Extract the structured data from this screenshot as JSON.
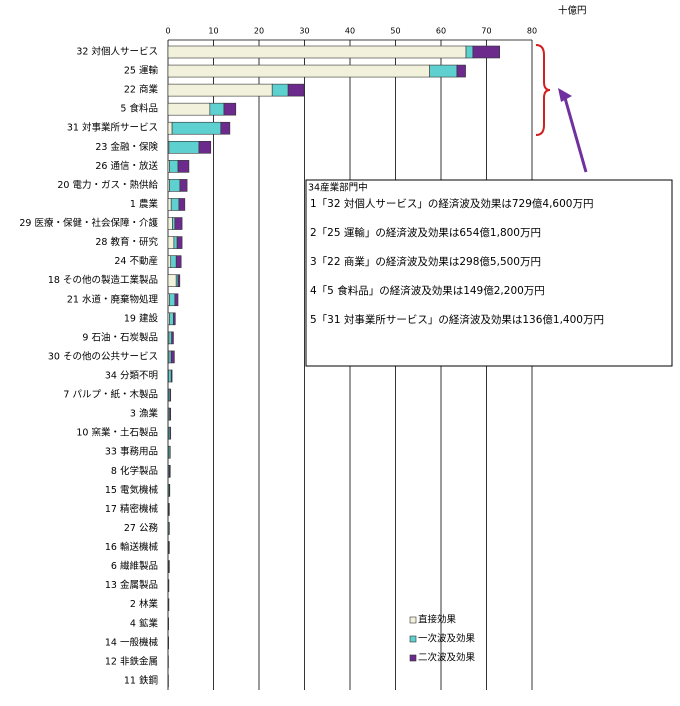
{
  "chart_data": {
    "type": "stacked-barh",
    "unit_label": "十億円",
    "categories": [
      "32 対個人サービス",
      "25 運輸",
      "22 商業",
      "5 食料品",
      "31 対事業所サービス",
      "23 金融・保険",
      "26 通信・放送",
      "20 電力・ガス・熱供給",
      "1 農業",
      "29 医療・保健・社会保障・介護",
      "28 教育・研究",
      "24 不動産",
      "18 その他の製造工業製品",
      "21 水道・廃棄物処理",
      "19 建設",
      "9 石油・石炭製品",
      "30 その他の公共サービス",
      "34 分類不明",
      "7 パルプ・紙・木製品",
      "3 漁業",
      "10 窯業・土石製品",
      "33 事務用品",
      "8 化学製品",
      "15 電気機械",
      "17 精密機械",
      "27 公務",
      "16 輸送機械",
      "6 繊維製品",
      "13 金属製品",
      "2 林業",
      "4 鉱業",
      "14 一般機械",
      "12 非鉄金属",
      "11 鉄鋼"
    ],
    "series": [
      {
        "name": "直接効果",
        "color": "#f2f2dc",
        "values": [
          65.5,
          57.5,
          22.9,
          9.2,
          0.9,
          0.2,
          0.3,
          0.3,
          0.7,
          1.0,
          1.3,
          0.6,
          1.8,
          0.3,
          0.3,
          0.2,
          0.2,
          0.1,
          0.1,
          0.2,
          0.1,
          0.1,
          0.1,
          0.1,
          0.1,
          0,
          0.1,
          0.1,
          0,
          0,
          0,
          0,
          0,
          0
        ]
      },
      {
        "name": "一次波及効果",
        "color": "#5fd0d0",
        "values": [
          1.5,
          6.0,
          3.5,
          3.1,
          10.7,
          6.6,
          1.9,
          2.3,
          1.7,
          0.5,
          0.7,
          1.2,
          0.4,
          1.2,
          0.9,
          0.6,
          0.5,
          0.6,
          0.3,
          0.2,
          0.3,
          0.3,
          0.2,
          0.2,
          0.1,
          0.2,
          0.1,
          0.1,
          0.1,
          0.1,
          0.1,
          0.1,
          0.05,
          0.05
        ]
      },
      {
        "name": "二次波及効果",
        "color": "#6b2a8c",
        "values": [
          5.9,
          1.9,
          3.5,
          2.6,
          2.0,
          2.6,
          2.4,
          1.6,
          1.3,
          1.6,
          1.1,
          1.1,
          0.4,
          0.7,
          0.4,
          0.4,
          0.7,
          0.2,
          0.2,
          0.2,
          0.2,
          0.1,
          0.2,
          0.1,
          0.1,
          0.1,
          0.1,
          0.1,
          0.1,
          0.1,
          0.05,
          0.05,
          0.05,
          0.05
        ]
      }
    ],
    "xlim": [
      0,
      80
    ],
    "xticks": [
      0,
      10,
      20,
      30,
      40,
      50,
      60,
      70,
      80
    ],
    "grid": true,
    "legend": "lower-center",
    "annotation": {
      "title": "34産業部門中",
      "lines": [
        "1「32 対個人サービス」の経済波及効果は729億4,600万円",
        "2「25 運輸」の経済波及効果は654億1,800万円",
        "3「22 商業」の経済波及効果は298億5,500万円",
        "4「5 食料品」の経済波及効果は149億2,200万円",
        "5「31 対事業所サービス」の経済波及効果は136億1,400万円"
      ]
    }
  }
}
